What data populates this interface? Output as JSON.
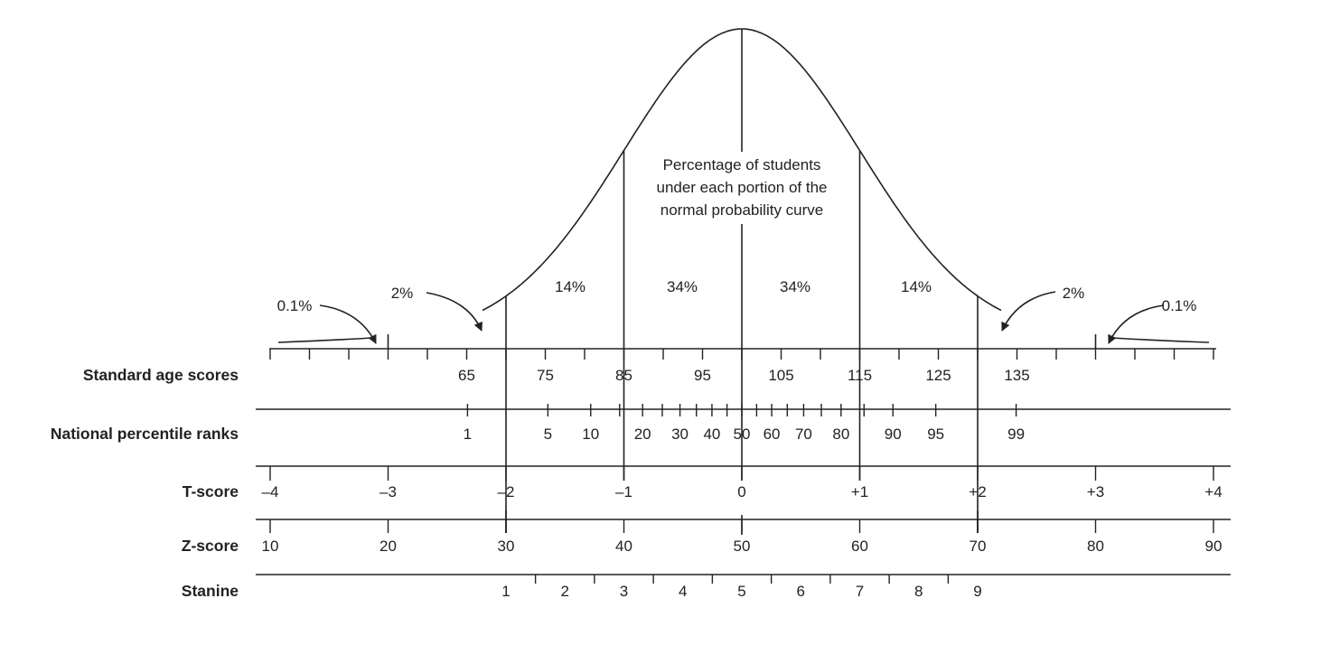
{
  "center_label": [
    "Percentage of students",
    "under each portion of the",
    "normal probability curve"
  ],
  "percentages": [
    "0.1%",
    "2%",
    "14%",
    "34%",
    "34%",
    "14%",
    "2%",
    "0.1%"
  ],
  "rows": {
    "standard_age": {
      "name": "Standard age scores",
      "labels": [
        "65",
        "75",
        "85",
        "95",
        "105",
        "115",
        "125",
        "135"
      ],
      "values": [
        65,
        75,
        85,
        95,
        105,
        115,
        125,
        135
      ]
    },
    "percentile": {
      "name": "National percentile ranks",
      "labels": [
        "1",
        "5",
        "10",
        "20",
        "30",
        "40",
        "50",
        "60",
        "70",
        "80",
        "90",
        "95",
        "99"
      ],
      "values": [
        1,
        5,
        10,
        20,
        30,
        40,
        50,
        60,
        70,
        80,
        90,
        95,
        99
      ]
    },
    "t_score": {
      "name": "T-score",
      "labels": [
        "–4",
        "–3",
        "–2",
        "–1",
        "0",
        "+1",
        "+2",
        "+3",
        "+4"
      ],
      "values": [
        -4,
        -3,
        -2,
        -1,
        0,
        1,
        2,
        3,
        4
      ]
    },
    "z_score": {
      "name": "Z-score",
      "labels": [
        "10",
        "20",
        "30",
        "40",
        "50",
        "60",
        "70",
        "80",
        "90"
      ],
      "values": [
        10,
        20,
        30,
        40,
        50,
        60,
        70,
        80,
        90
      ]
    },
    "stanine": {
      "name": "Stanine",
      "labels": [
        "1",
        "2",
        "3",
        "4",
        "5",
        "6",
        "7",
        "8",
        "9"
      ],
      "values": [
        1,
        2,
        3,
        4,
        5,
        6,
        7,
        8,
        9
      ]
    }
  }
}
